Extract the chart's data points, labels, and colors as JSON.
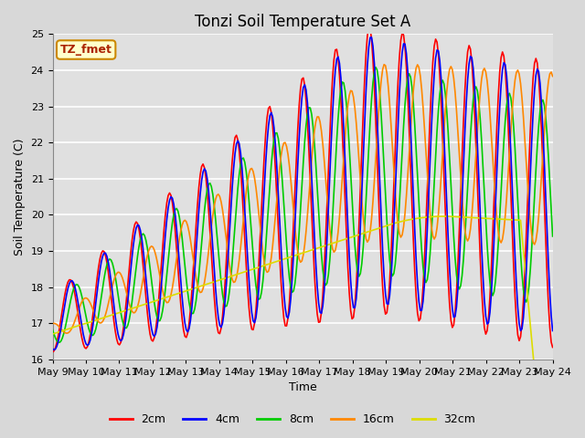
{
  "title": "Tonzi Soil Temperature Set A",
  "xlabel": "Time",
  "ylabel": "Soil Temperature (C)",
  "annotation": "TZ_fmet",
  "ylim": [
    16.0,
    25.0
  ],
  "yticks": [
    16.0,
    17.0,
    18.0,
    19.0,
    20.0,
    21.0,
    22.0,
    23.0,
    24.0,
    25.0
  ],
  "xtick_labels": [
    "May 9",
    "May 10",
    "May 11",
    "May 12",
    "May 13",
    "May 14",
    "May 15",
    "May 16",
    "May 17",
    "May 18",
    "May 19",
    "May 20",
    "May 21",
    "May 22",
    "May 23",
    "May 24"
  ],
  "series_colors": [
    "#ff0000",
    "#0000ff",
    "#00cc00",
    "#ff8800",
    "#dddd00"
  ],
  "series_labels": [
    "2cm",
    "4cm",
    "8cm",
    "16cm",
    "32cm"
  ],
  "fig_facecolor": "#d8d8d8",
  "plot_bg_color": "#e0e0e0",
  "grid_color": "#ffffff",
  "title_fontsize": 12,
  "axis_label_fontsize": 9,
  "tick_fontsize": 8
}
